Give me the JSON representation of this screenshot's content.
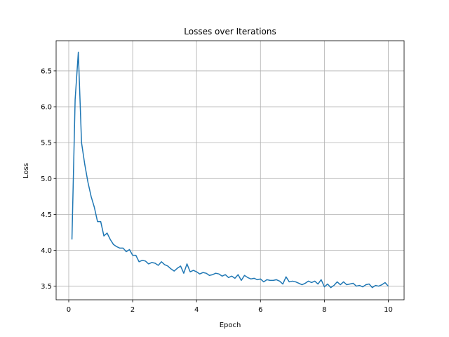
{
  "chart_data": {
    "type": "line",
    "title": "Losses over Iterations",
    "x_label": "Epoch",
    "y_label": "Loss",
    "color": "#1f77b4",
    "grid": true,
    "x": [
      0.1,
      0.2,
      0.3,
      0.4,
      0.5,
      0.6,
      0.7,
      0.8,
      0.9,
      1.0,
      1.1,
      1.2,
      1.3,
      1.4,
      1.5,
      1.6,
      1.7,
      1.8,
      1.9,
      2.0,
      2.1,
      2.2,
      2.3,
      2.4,
      2.5,
      2.6,
      2.7,
      2.8,
      2.9,
      3.0,
      3.1,
      3.2,
      3.3,
      3.4,
      3.5,
      3.6,
      3.7,
      3.8,
      3.9,
      4.0,
      4.1,
      4.2,
      4.3,
      4.4,
      4.5,
      4.6,
      4.7,
      4.8,
      4.9,
      5.0,
      5.1,
      5.2,
      5.3,
      5.4,
      5.5,
      5.6,
      5.7,
      5.8,
      5.9,
      6.0,
      6.1,
      6.2,
      6.3,
      6.4,
      6.5,
      6.6,
      6.7,
      6.8,
      6.9,
      7.0,
      7.1,
      7.2,
      7.3,
      7.4,
      7.5,
      7.6,
      7.7,
      7.8,
      7.9,
      8.0,
      8.1,
      8.2,
      8.3,
      8.4,
      8.5,
      8.6,
      8.7,
      8.8,
      8.9,
      9.0,
      9.1,
      9.2,
      9.3,
      9.4,
      9.5,
      9.6,
      9.7,
      9.8,
      9.9,
      10.0
    ],
    "values": [
      4.15,
      6.1,
      6.76,
      5.5,
      5.2,
      4.95,
      4.75,
      4.6,
      4.4,
      4.4,
      4.2,
      4.24,
      4.15,
      4.08,
      4.05,
      4.03,
      4.03,
      3.98,
      4.01,
      3.93,
      3.93,
      3.84,
      3.86,
      3.85,
      3.81,
      3.83,
      3.82,
      3.79,
      3.84,
      3.8,
      3.78,
      3.74,
      3.71,
      3.75,
      3.78,
      3.68,
      3.81,
      3.7,
      3.72,
      3.7,
      3.67,
      3.69,
      3.68,
      3.65,
      3.66,
      3.68,
      3.67,
      3.64,
      3.66,
      3.62,
      3.64,
      3.61,
      3.66,
      3.58,
      3.65,
      3.62,
      3.6,
      3.61,
      3.59,
      3.6,
      3.56,
      3.59,
      3.58,
      3.58,
      3.59,
      3.57,
      3.53,
      3.63,
      3.56,
      3.57,
      3.56,
      3.54,
      3.52,
      3.54,
      3.57,
      3.55,
      3.57,
      3.53,
      3.59,
      3.49,
      3.53,
      3.48,
      3.51,
      3.56,
      3.52,
      3.56,
      3.52,
      3.53,
      3.54,
      3.5,
      3.51,
      3.49,
      3.52,
      3.53,
      3.48,
      3.51,
      3.5,
      3.52,
      3.55,
      3.5
    ],
    "xlim": [
      -0.395,
      10.495
    ],
    "ylim": [
      3.31,
      6.92
    ],
    "xticks": [
      0,
      2,
      4,
      6,
      8,
      10
    ],
    "yticks": [
      3.5,
      {
        "value": 4,
        "label": "4.0"
      },
      4.5,
      {
        "value": 5,
        "label": "5.0"
      },
      5.5,
      {
        "value": 6,
        "label": "6.0"
      },
      6.5
    ]
  }
}
